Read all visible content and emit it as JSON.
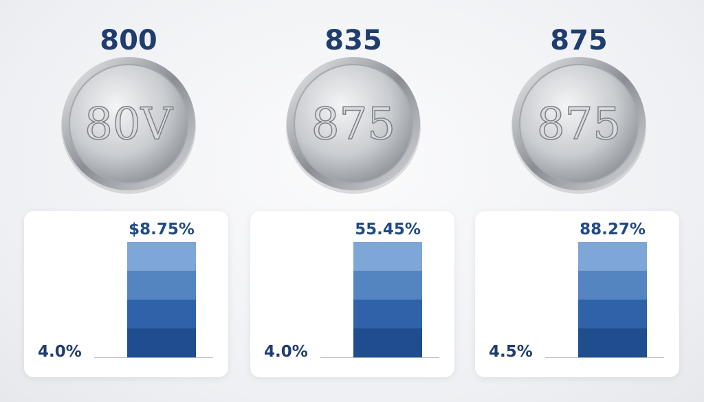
{
  "panels": [
    {
      "title": "800",
      "coin_text": "80V",
      "bar_label": "$8.75%",
      "side_label": "4.0%"
    },
    {
      "title": "835",
      "coin_text": "875",
      "bar_label": "55.45%",
      "side_label": "4.0%"
    },
    {
      "title": "875",
      "coin_text": "875",
      "bar_label": "88.27%",
      "side_label": "4.5%"
    }
  ]
}
